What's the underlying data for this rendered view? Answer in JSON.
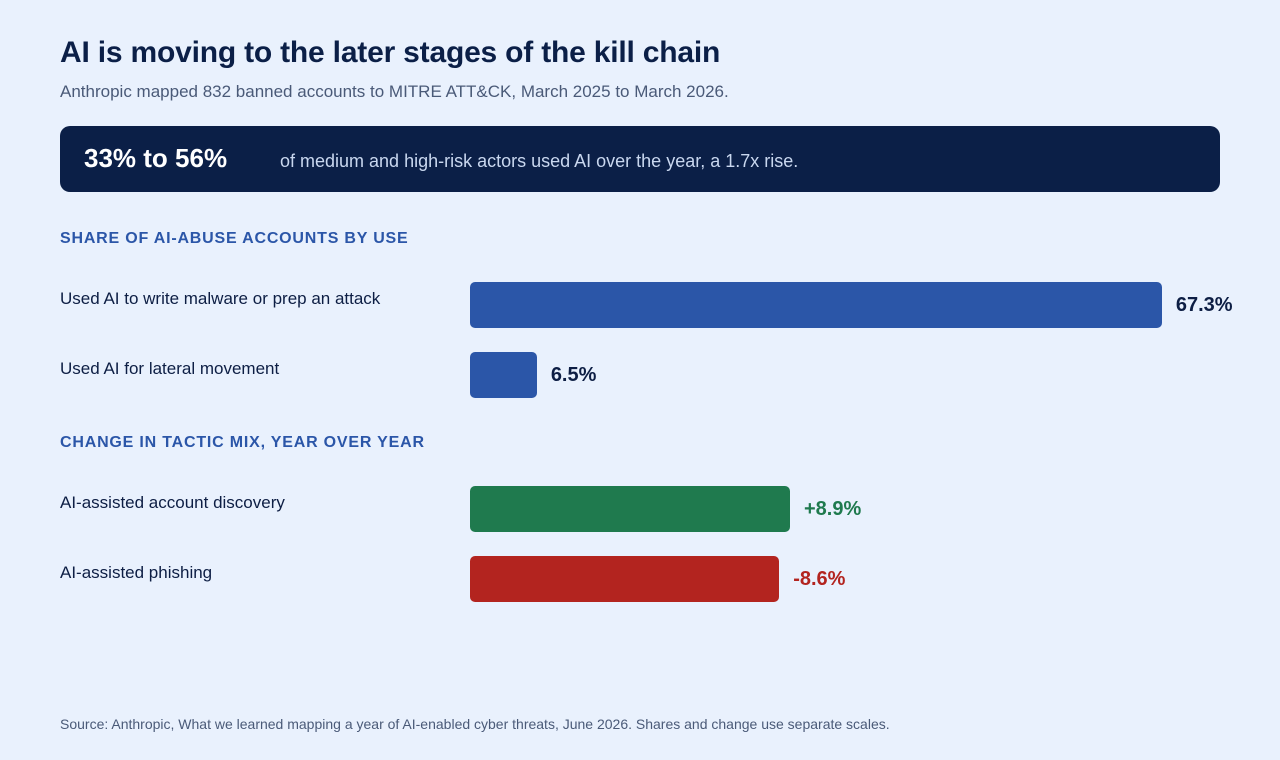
{
  "header": {
    "title": "AI is moving to the later stages of the kill chain",
    "subtitle": "Anthropic mapped 832 banned accounts to MITRE ATT&CK, March 2025 to March 2026."
  },
  "banner": {
    "stat": "33% to 56%",
    "text": "of medium and high-risk actors used AI over the year, a 1.7x rise."
  },
  "colors": {
    "share": "#2b56a8",
    "positive": "#1f7a4e",
    "negative": "#b3241f"
  },
  "chart_data": [
    {
      "type": "bar",
      "title": "SHARE OF AI-ABUSE ACCOUNTS BY USE",
      "categories": [
        "Used AI to write malware or prep an attack",
        "Used AI for lateral movement"
      ],
      "values": [
        67.3,
        6.5
      ],
      "labels": [
        "67.3%",
        "6.5%"
      ]
    },
    {
      "type": "bar",
      "title": "CHANGE IN TACTIC MIX, YEAR OVER YEAR",
      "categories": [
        "AI-assisted account discovery",
        "AI-assisted phishing"
      ],
      "values": [
        8.9,
        -8.6
      ],
      "labels": [
        "+8.9%",
        "-8.6%"
      ]
    }
  ],
  "footer": {
    "source": "Source: Anthropic, What we learned mapping a year of AI-enabled cyber threats, June 2026. Shares and change use separate scales."
  }
}
